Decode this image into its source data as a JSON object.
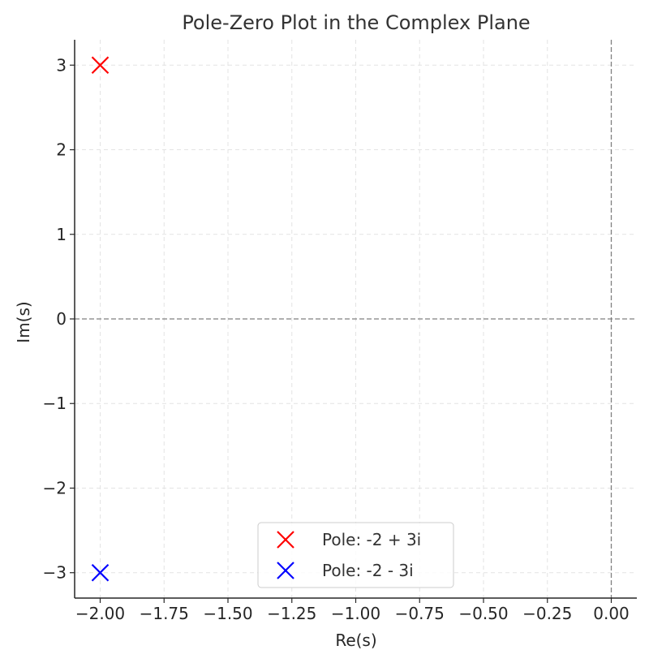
{
  "chart_data": {
    "type": "scatter",
    "title": "Pole-Zero Plot in the Complex Plane",
    "xlabel": "Re(s)",
    "ylabel": "Im(s)",
    "xlim": [
      -2.1,
      0.1
    ],
    "ylim": [
      -3.3,
      3.3
    ],
    "xticks": [
      -2.0,
      -1.75,
      -1.5,
      -1.25,
      -1.0,
      -0.75,
      -0.5,
      -0.25,
      0.0
    ],
    "xtick_labels": [
      "−2.00",
      "−1.75",
      "−1.50",
      "−1.25",
      "−1.00",
      "−0.75",
      "−0.50",
      "−0.25",
      "0.00"
    ],
    "yticks": [
      3,
      2,
      1,
      0,
      -1,
      -2,
      -3
    ],
    "ytick_labels": [
      "3",
      "2",
      "1",
      "0",
      "−1",
      "−2",
      "−3"
    ],
    "grid": true,
    "reference_lines": {
      "x": 0,
      "y": 0
    },
    "legend_position": "lower-center",
    "series": [
      {
        "name": "Pole: -2 + 3i",
        "marker": "x",
        "color": "#ff0000",
        "points": [
          {
            "x": -2,
            "y": 3
          }
        ]
      },
      {
        "name": "Pole: -2 - 3i",
        "marker": "x",
        "color": "#0000ff",
        "points": [
          {
            "x": -2,
            "y": -3
          }
        ]
      }
    ]
  }
}
